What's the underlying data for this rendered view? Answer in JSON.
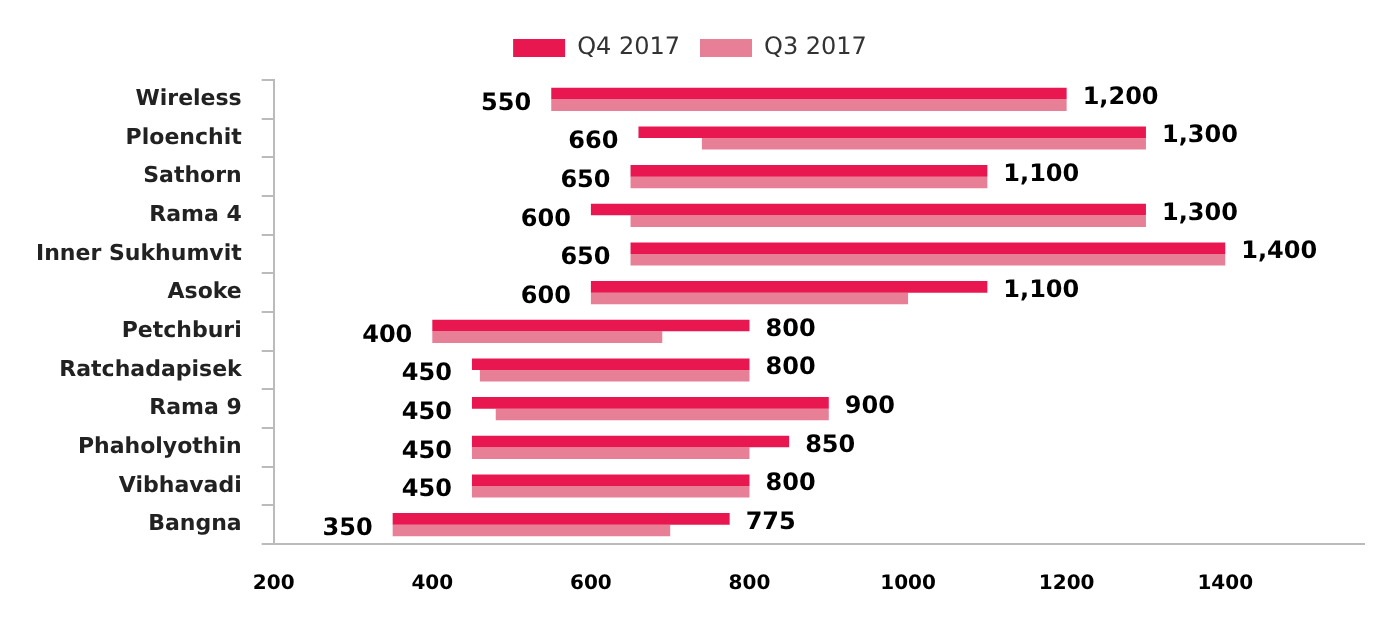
{
  "chart_data": {
    "type": "bar",
    "orientation": "horizontal",
    "categories": [
      "Wireless",
      "Ploenchit",
      "Sathorn",
      "Rama 4",
      "Inner Sukhumvit",
      "Asoke",
      "Petchburi",
      "Ratchadapisek",
      "Rama 9",
      "Phaholyothin",
      "Vibhavadi",
      "Bangna"
    ],
    "series": [
      {
        "name": "Q4 2017",
        "color": "#e8174f",
        "base": [
          550,
          660,
          650,
          600,
          650,
          600,
          400,
          450,
          450,
          450,
          450,
          350
        ],
        "values": [
          650,
          640,
          450,
          700,
          750,
          500,
          400,
          350,
          450,
          400,
          350,
          425
        ],
        "value_labels": [
          "1,200",
          "1,300",
          "1,100",
          "1,300",
          "1,400",
          "1,100",
          "800",
          "800",
          "900",
          "850",
          "800",
          "775"
        ]
      },
      {
        "name": "Q3 2017",
        "color": "#e77f97",
        "base": [
          550,
          740,
          650,
          650,
          650,
          600,
          400,
          460,
          480,
          450,
          450,
          350
        ],
        "values": [
          650,
          560,
          450,
          650,
          750,
          400,
          290,
          340,
          420,
          350,
          350,
          350
        ]
      }
    ],
    "xlim": [
      200,
      1575
    ],
    "xticks": [
      200,
      400,
      600,
      800,
      1000,
      1200,
      1400
    ],
    "grid": false,
    "legend": "top",
    "annotations": [
      {
        "text": "550",
        "x": 550,
        "y": "Wireless"
      },
      {
        "text": "660",
        "x": 660,
        "y": "Ploenchit"
      },
      {
        "text": "650",
        "x": 650,
        "y": "Sathorn"
      },
      {
        "text": "600",
        "x": 600,
        "y": "Rama 4"
      },
      {
        "text": "650",
        "x": 650,
        "y": "Inner Sukhumvit"
      },
      {
        "text": "600",
        "x": 600,
        "y": "Asoke"
      },
      {
        "text": "400",
        "x": 400,
        "y": "Petchburi"
      },
      {
        "text": "450",
        "x": 450,
        "y": "Ratchadapisek"
      },
      {
        "text": "450",
        "x": 450,
        "y": "Rama 9"
      },
      {
        "text": "450",
        "x": 450,
        "y": "Phaholyothin"
      },
      {
        "text": "450",
        "x": 450,
        "y": "Vibhavadi"
      },
      {
        "text": "350",
        "x": 350,
        "y": "Bangna"
      }
    ]
  }
}
